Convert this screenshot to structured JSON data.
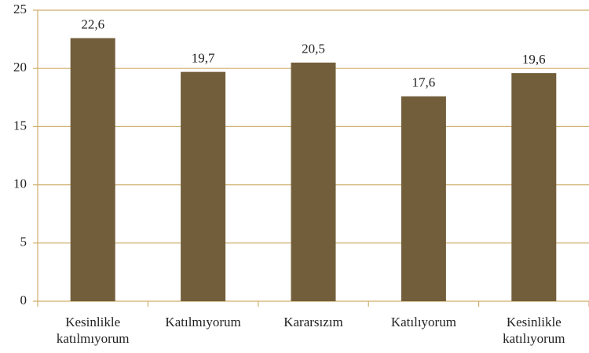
{
  "chart_data": {
    "type": "bar",
    "categories": [
      "Kesinlikle katılmıyorum",
      "Katılmıyorum",
      "Kararsızım",
      "Katılıyorum",
      "Kesinlikle katılıyorum"
    ],
    "values": [
      22.6,
      19.7,
      20.5,
      17.6,
      19.6
    ],
    "value_labels": [
      "22,6",
      "19,7",
      "20,5",
      "17,6",
      "19,6"
    ],
    "color": "#735e3b",
    "ylim": [
      0,
      25
    ],
    "yticks": [
      0,
      5,
      10,
      15,
      20,
      25
    ],
    "grid": true
  }
}
